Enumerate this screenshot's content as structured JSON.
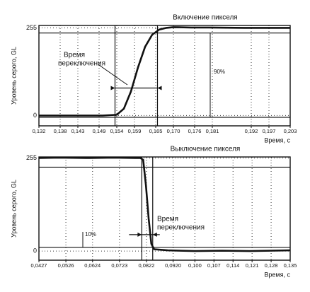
{
  "chart_data": [
    {
      "type": "line",
      "title": "Включение пикселя",
      "y_label": "Уровень серого, GL",
      "x_label": "Время, с",
      "annotation": [
        "Время",
        "переключения"
      ],
      "level_label": "90%",
      "xlim": [
        0.132,
        0.203
      ],
      "ylim": [
        -30,
        262
      ],
      "xticks": [
        {
          "value": 0.132,
          "label": "0,132"
        },
        {
          "value": 0.138,
          "label": "0,138"
        },
        {
          "value": 0.143,
          "label": "0,143"
        },
        {
          "value": 0.149,
          "label": "0,149"
        },
        {
          "value": 0.154,
          "label": "0,154"
        },
        {
          "value": 0.159,
          "label": "0,159"
        },
        {
          "value": 0.165,
          "label": "0,165"
        },
        {
          "value": 0.17,
          "label": "0,170"
        },
        {
          "value": 0.176,
          "label": "0,176"
        },
        {
          "value": 0.181,
          "label": "0,181"
        },
        {
          "value": 0.192,
          "label": "0,192"
        },
        {
          "value": 0.197,
          "label": "0,197"
        },
        {
          "value": 0.203,
          "label": "0,203"
        }
      ],
      "yticks": [
        0,
        255
      ],
      "grid": true,
      "hlines": [
        -5,
        240
      ],
      "vlines": [
        0.1535,
        0.1655
      ],
      "series": [
        {
          "color": "#111111",
          "x": [
            0.132,
            0.14,
            0.15,
            0.154,
            0.156,
            0.158,
            0.16,
            0.162,
            0.164,
            0.166,
            0.168,
            0.17,
            0.175,
            0.18,
            0.19,
            0.203
          ],
          "values": [
            0,
            0,
            0,
            2,
            20,
            70,
            140,
            200,
            235,
            250,
            255,
            257,
            256,
            256,
            255,
            255
          ]
        }
      ]
    },
    {
      "type": "line",
      "title": "Выключение пикселя",
      "y_label": "Уровень серого, GL",
      "x_label": "Время, с",
      "annotation": [
        "Время",
        "переключения"
      ],
      "level_label": "10%",
      "xlim": [
        0.0427,
        0.135
      ],
      "ylim": [
        -25,
        258
      ],
      "xticks": [
        {
          "value": 0.0427,
          "label": "0,0427"
        },
        {
          "value": 0.0526,
          "label": "0,0526"
        },
        {
          "value": 0.0624,
          "label": "0,0624"
        },
        {
          "value": 0.0723,
          "label": "0,0723"
        },
        {
          "value": 0.0822,
          "label": "0,0822"
        },
        {
          "value": 0.092,
          "label": "0,0920"
        },
        {
          "value": 0.1,
          "label": "0,100"
        },
        {
          "value": 0.107,
          "label": "0,107"
        },
        {
          "value": 0.114,
          "label": "0,114"
        },
        {
          "value": 0.121,
          "label": "0,121"
        },
        {
          "value": 0.128,
          "label": "0,128"
        },
        {
          "value": 0.135,
          "label": "0,135"
        }
      ],
      "yticks": [
        0,
        255
      ],
      "grid": true,
      "hlines": [
        230,
        10
      ],
      "vlines": [
        0.0805,
        0.0845
      ],
      "series": [
        {
          "color": "#111111",
          "x": [
            0.0427,
            0.05,
            0.06,
            0.07,
            0.078,
            0.08,
            0.081,
            0.082,
            0.083,
            0.084,
            0.085,
            0.09,
            0.1,
            0.11,
            0.12,
            0.135
          ],
          "values": [
            255,
            256,
            255,
            256,
            255,
            255,
            250,
            180,
            90,
            20,
            5,
            2,
            0,
            1,
            0,
            2
          ]
        }
      ]
    }
  ]
}
